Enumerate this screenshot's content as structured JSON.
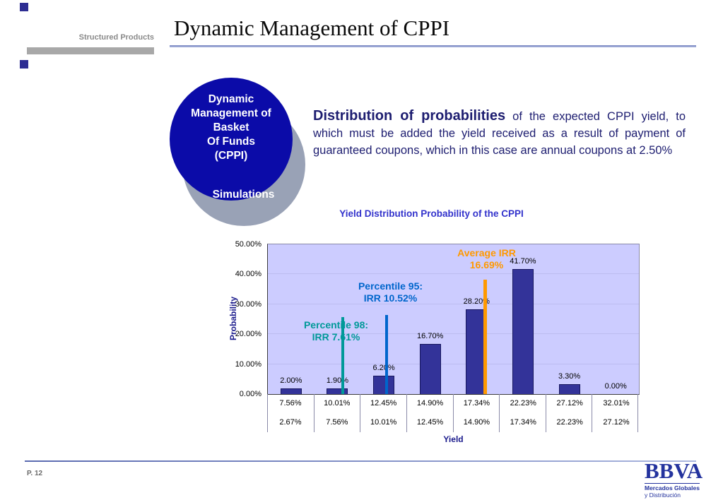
{
  "slide": {
    "eyebrow": "Structured Products",
    "title": "Dynamic Management of CPPI",
    "page_number": "P. 12"
  },
  "diagram": {
    "circle_lines": [
      "Dynamic",
      "Management of",
      "Basket",
      "Of Funds",
      "(CPPI)"
    ],
    "gray_circle_label": "Simulations"
  },
  "paragraph": {
    "lead": "Distribution of probabilities",
    "rest": " of the expected CPPI yield, to which must be added the yield received as a result of payment of guaranteed coupons, which in this case are annual coupons at 2.50%"
  },
  "logo": {
    "name": "BBVA",
    "subtitle1": "Mercados Globales",
    "subtitle2": "y Distribución"
  },
  "colors": {
    "circle_navy": "#0b0ba8",
    "circle_gray": "#99a2b6",
    "chart_title_blue": "#3333cc",
    "brand_blue": "#24339e"
  },
  "chart_data": {
    "type": "bar",
    "title": "Yield Distribution Probability of the CPPI",
    "xlabel": "Yield",
    "ylabel": "Probability",
    "ylim": [
      0,
      50
    ],
    "grid": true,
    "y_tick_labels": [
      "0.00%",
      "10.00%",
      "20.00%",
      "30.00%",
      "40.00%",
      "50.00%"
    ],
    "categories_upper": [
      "7.56%",
      "10.01%",
      "12.45%",
      "14.90%",
      "17.34%",
      "22.23%",
      "27.12%",
      "32.01%"
    ],
    "categories_lower": [
      "2.67%",
      "7.56%",
      "10.01%",
      "12.45%",
      "14.90%",
      "17.34%",
      "22.23%",
      "27.12%"
    ],
    "values": [
      2.0,
      1.9,
      6.2,
      16.7,
      28.2,
      41.7,
      3.3,
      0.0
    ],
    "value_labels": [
      "2.00%",
      "1.90%",
      "6.20%",
      "16.70%",
      "28.20%",
      "41.70%",
      "3.30%",
      "0.00%"
    ],
    "bar_color": "#333399",
    "plot_background": "#ccccff",
    "annotations": [
      {
        "text_line1": "Percentile 98:",
        "text_line2": "IRR 7.61%",
        "value": 7.61,
        "color": "#009999"
      },
      {
        "text_line1": "Percentile 95:",
        "text_line2": "IRR 10.52%",
        "value": 10.52,
        "color": "#0066CC"
      },
      {
        "text_line1": "Average IRR",
        "text_line2": "16.69%",
        "value": 16.69,
        "color": "#FF9900"
      }
    ]
  }
}
